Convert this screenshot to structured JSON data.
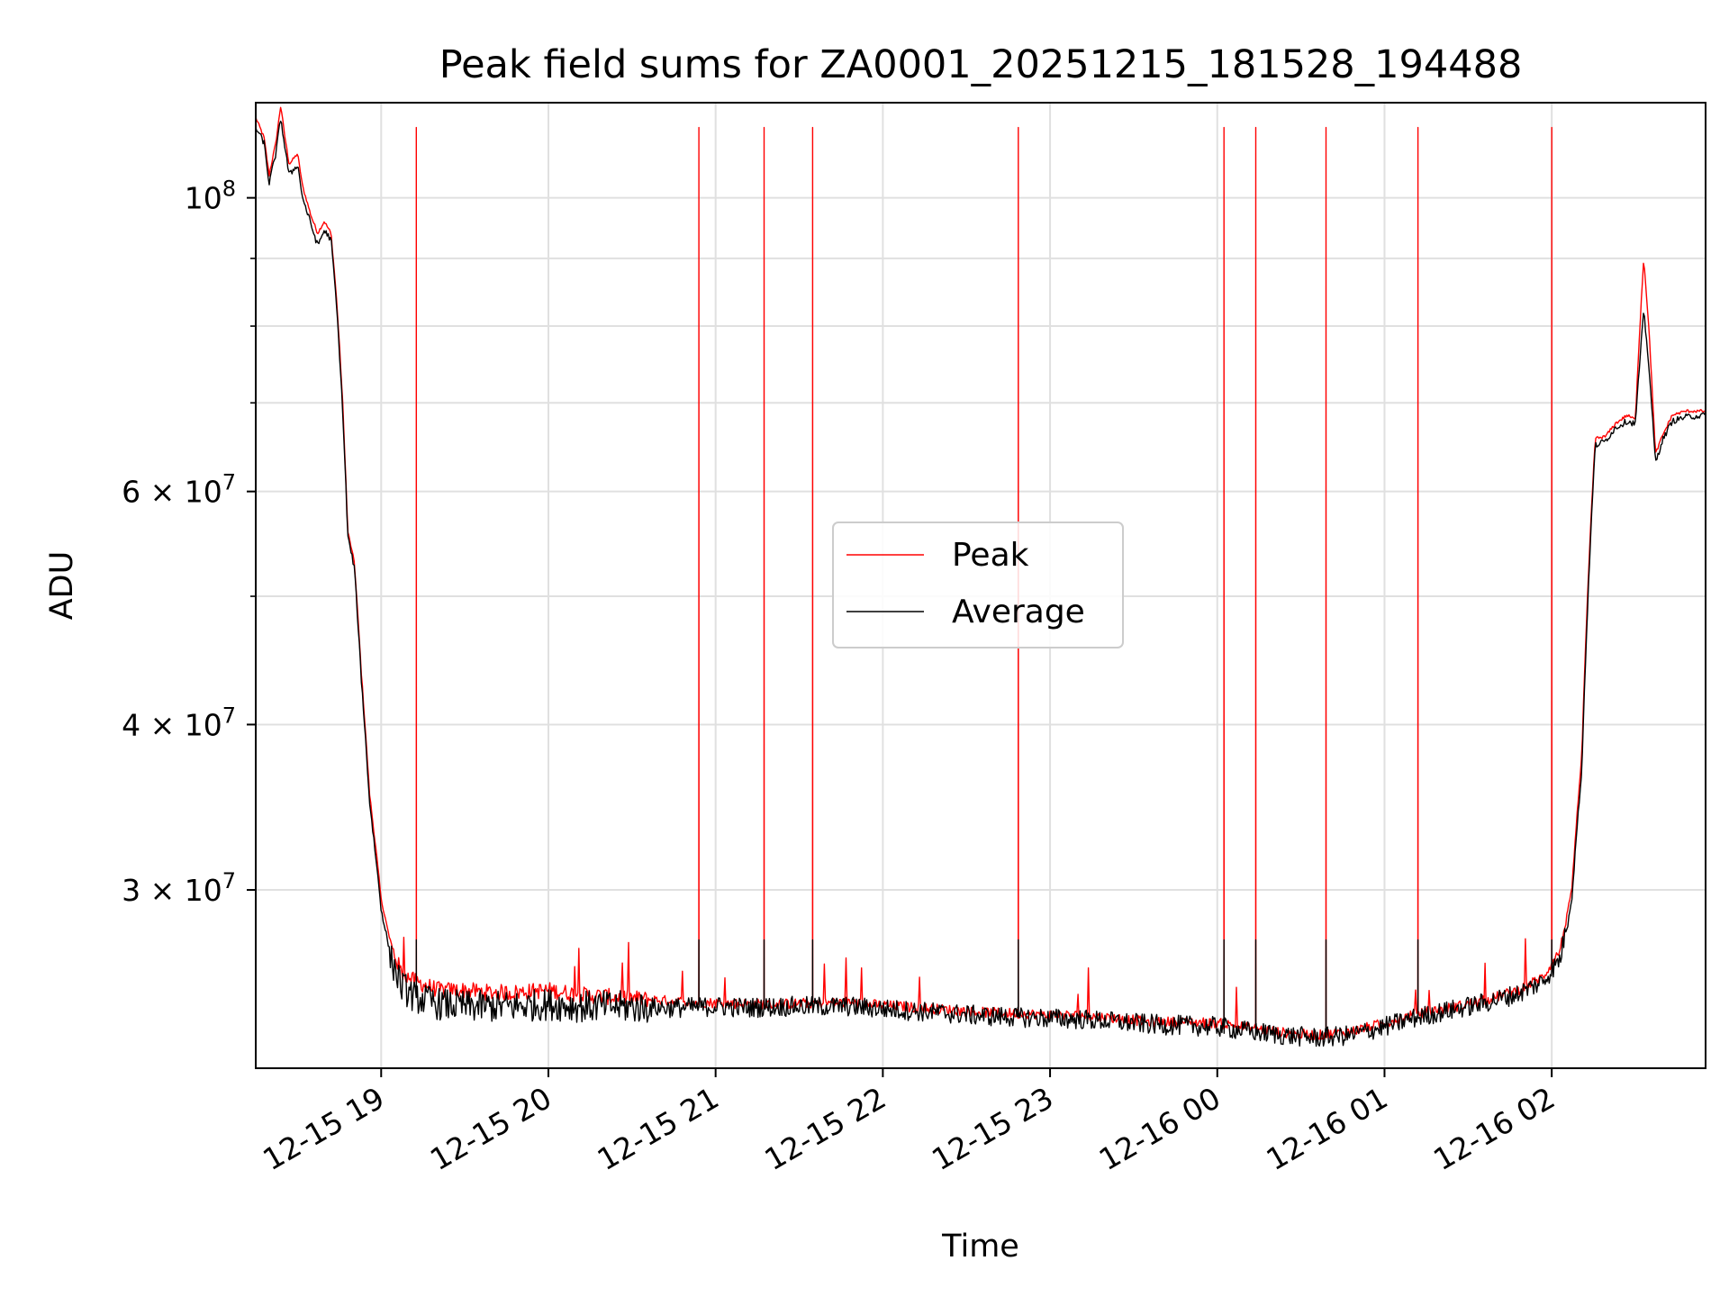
{
  "chart_data": {
    "type": "line",
    "title": "Peak field sums for ZA0001_20251215_181528_194488",
    "xlabel": "Time",
    "ylabel": "ADU",
    "scale_y": "log",
    "xlim_hours_since_2025_12_15_00": [
      18.25,
      26.92
    ],
    "ylim": [
      22000000,
      118000000
    ],
    "grid": true,
    "legend_position": "center",
    "x_ticks": [
      {
        "hour": 19,
        "label": "12-15 19"
      },
      {
        "hour": 20,
        "label": "12-15 20"
      },
      {
        "hour": 21,
        "label": "12-15 21"
      },
      {
        "hour": 22,
        "label": "12-15 22"
      },
      {
        "hour": 23,
        "label": "12-15 23"
      },
      {
        "hour": 24,
        "label": "12-16 00"
      },
      {
        "hour": 25,
        "label": "12-16 01"
      },
      {
        "hour": 26,
        "label": "12-16 02"
      }
    ],
    "y_ticks": [
      {
        "value": 100000000,
        "base": "10",
        "exp": "8"
      },
      {
        "value": 60000000,
        "base": "6 × 10",
        "exp": "7"
      },
      {
        "value": 40000000,
        "base": "4 × 10",
        "exp": "7"
      },
      {
        "value": 30000000,
        "base": "3 × 10",
        "exp": "7"
      }
    ],
    "y_minor_ticks": [
      50000000,
      70000000,
      80000000,
      90000000
    ],
    "series": [
      {
        "name": "Peak",
        "color": "#ff0000",
        "points": [
          [
            18.25,
            115000000
          ],
          [
            18.3,
            111000000
          ],
          [
            18.33,
            104000000
          ],
          [
            18.37,
            110000000
          ],
          [
            18.4,
            117500000
          ],
          [
            18.42,
            112000000
          ],
          [
            18.45,
            106000000
          ],
          [
            18.5,
            108000000
          ],
          [
            18.53,
            102000000
          ],
          [
            18.58,
            97000000
          ],
          [
            18.62,
            94000000
          ],
          [
            18.66,
            96000000
          ],
          [
            18.7,
            94000000
          ],
          [
            18.73,
            85000000
          ],
          [
            18.77,
            70000000
          ],
          [
            18.8,
            56000000
          ],
          [
            18.84,
            53000000
          ],
          [
            18.88,
            44000000
          ],
          [
            18.93,
            35500000
          ],
          [
            19.0,
            29500000
          ],
          [
            19.06,
            27200000
          ],
          [
            19.12,
            26000000
          ],
          [
            19.2,
            25600000
          ],
          [
            19.35,
            25200000
          ],
          [
            19.5,
            25200000
          ],
          [
            19.65,
            25100000
          ],
          [
            19.8,
            25100000
          ],
          [
            20.0,
            25200000
          ],
          [
            20.2,
            25000000
          ],
          [
            20.4,
            24900000
          ],
          [
            20.6,
            24800000
          ],
          [
            20.8,
            24700000
          ],
          [
            21.0,
            24650000
          ],
          [
            21.2,
            24600000
          ],
          [
            21.4,
            24600000
          ],
          [
            21.6,
            24650000
          ],
          [
            21.8,
            24650000
          ],
          [
            22.0,
            24550000
          ],
          [
            22.2,
            24450000
          ],
          [
            22.4,
            24350000
          ],
          [
            22.6,
            24250000
          ],
          [
            22.8,
            24200000
          ],
          [
            23.0,
            24150000
          ],
          [
            23.2,
            24100000
          ],
          [
            23.4,
            24000000
          ],
          [
            23.6,
            23850000
          ],
          [
            23.8,
            23850000
          ],
          [
            24.0,
            23800000
          ],
          [
            24.2,
            23600000
          ],
          [
            24.4,
            23400000
          ],
          [
            24.6,
            23300000
          ],
          [
            24.8,
            23450000
          ],
          [
            25.0,
            23800000
          ],
          [
            25.2,
            24200000
          ],
          [
            25.4,
            24450000
          ],
          [
            25.6,
            24750000
          ],
          [
            25.8,
            25200000
          ],
          [
            25.95,
            25800000
          ],
          [
            26.05,
            27000000
          ],
          [
            26.12,
            30000000
          ],
          [
            26.18,
            38000000
          ],
          [
            26.22,
            52000000
          ],
          [
            26.26,
            65800000
          ],
          [
            26.32,
            66000000
          ],
          [
            26.38,
            67500000
          ],
          [
            26.45,
            68500000
          ],
          [
            26.5,
            68000000
          ],
          [
            26.55,
            90000000
          ],
          [
            26.58,
            80000000
          ],
          [
            26.62,
            64000000
          ],
          [
            26.66,
            66000000
          ],
          [
            26.72,
            68500000
          ],
          [
            26.8,
            69000000
          ],
          [
            26.92,
            69000000
          ]
        ],
        "spikes": [
          19.21,
          20.9,
          21.29,
          21.58,
          22.81,
          24.04,
          24.23,
          24.65,
          25.2,
          26.0
        ],
        "spike_peak": 113000000
      },
      {
        "name": "Average",
        "color": "#000000",
        "points": [
          [
            18.25,
            113000000
          ],
          [
            18.3,
            110000000
          ],
          [
            18.33,
            102500000
          ],
          [
            18.37,
            108000000
          ],
          [
            18.4,
            115000000
          ],
          [
            18.42,
            110000000
          ],
          [
            18.45,
            104000000
          ],
          [
            18.5,
            106000000
          ],
          [
            18.53,
            100000000
          ],
          [
            18.58,
            95500000
          ],
          [
            18.62,
            92000000
          ],
          [
            18.66,
            94500000
          ],
          [
            18.7,
            93000000
          ],
          [
            18.73,
            84000000
          ],
          [
            18.77,
            69000000
          ],
          [
            18.8,
            55500000
          ],
          [
            18.84,
            52500000
          ],
          [
            18.88,
            43500000
          ],
          [
            18.93,
            35000000
          ],
          [
            19.0,
            29000000
          ],
          [
            19.06,
            26600000
          ],
          [
            19.12,
            25400000
          ],
          [
            19.2,
            24900000
          ],
          [
            19.35,
            24600000
          ],
          [
            19.5,
            24500000
          ],
          [
            19.65,
            24500000
          ],
          [
            19.8,
            24500000
          ],
          [
            20.0,
            24600000
          ],
          [
            20.2,
            24500000
          ],
          [
            20.4,
            24500000
          ],
          [
            20.6,
            24450000
          ],
          [
            20.8,
            24450000
          ],
          [
            21.0,
            24500000
          ],
          [
            21.2,
            24450000
          ],
          [
            21.4,
            24500000
          ],
          [
            21.6,
            24500000
          ],
          [
            21.8,
            24500000
          ],
          [
            22.0,
            24400000
          ],
          [
            22.2,
            24300000
          ],
          [
            22.4,
            24200000
          ],
          [
            22.6,
            24100000
          ],
          [
            22.8,
            24050000
          ],
          [
            23.0,
            24000000
          ],
          [
            23.2,
            23950000
          ],
          [
            23.4,
            23850000
          ],
          [
            23.6,
            23750000
          ],
          [
            23.8,
            23700000
          ],
          [
            24.0,
            23650000
          ],
          [
            24.2,
            23450000
          ],
          [
            24.4,
            23300000
          ],
          [
            24.6,
            23200000
          ],
          [
            24.8,
            23300000
          ],
          [
            25.0,
            23650000
          ],
          [
            25.2,
            24050000
          ],
          [
            25.4,
            24350000
          ],
          [
            25.6,
            24650000
          ],
          [
            25.8,
            25050000
          ],
          [
            25.95,
            25600000
          ],
          [
            26.05,
            26600000
          ],
          [
            26.12,
            29500000
          ],
          [
            26.18,
            37000000
          ],
          [
            26.22,
            51000000
          ],
          [
            26.26,
            65000000
          ],
          [
            26.32,
            65500000
          ],
          [
            26.38,
            67000000
          ],
          [
            26.45,
            67800000
          ],
          [
            26.5,
            67500000
          ],
          [
            26.55,
            82000000
          ],
          [
            26.58,
            75000000
          ],
          [
            26.62,
            63000000
          ],
          [
            26.66,
            65500000
          ],
          [
            26.72,
            67800000
          ],
          [
            26.8,
            68300000
          ],
          [
            26.92,
            68500000
          ]
        ],
        "spikes": [
          19.21,
          20.9,
          21.29,
          21.58,
          22.81,
          24.04,
          24.23,
          24.65,
          25.2,
          26.0
        ],
        "spike_peak": 27500000
      }
    ]
  }
}
